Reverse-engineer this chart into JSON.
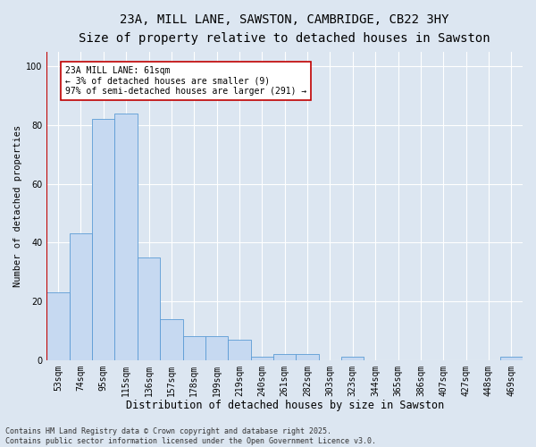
{
  "title": "23A, MILL LANE, SAWSTON, CAMBRIDGE, CB22 3HY",
  "subtitle": "Size of property relative to detached houses in Sawston",
  "xlabel": "Distribution of detached houses by size in Sawston",
  "ylabel": "Number of detached properties",
  "categories": [
    "53sqm",
    "74sqm",
    "95sqm",
    "115sqm",
    "136sqm",
    "157sqm",
    "178sqm",
    "199sqm",
    "219sqm",
    "240sqm",
    "261sqm",
    "282sqm",
    "303sqm",
    "323sqm",
    "344sqm",
    "365sqm",
    "386sqm",
    "407sqm",
    "427sqm",
    "448sqm",
    "469sqm"
  ],
  "values": [
    23,
    43,
    82,
    84,
    35,
    14,
    8,
    8,
    7,
    1,
    2,
    2,
    0,
    1,
    0,
    0,
    0,
    0,
    0,
    0,
    1
  ],
  "bar_color": "#c6d9f1",
  "bar_edge_color": "#5b9bd5",
  "highlight_color": "#c00000",
  "ylim": [
    0,
    105
  ],
  "yticks": [
    0,
    20,
    40,
    60,
    80,
    100
  ],
  "background_color": "#dce6f1",
  "grid_color": "#ffffff",
  "annotation_text": "23A MILL LANE: 61sqm\n← 3% of detached houses are smaller (9)\n97% of semi-detached houses are larger (291) →",
  "annotation_box_color": "#ffffff",
  "annotation_box_edge_color": "#c00000",
  "footer_text": "Contains HM Land Registry data © Crown copyright and database right 2025.\nContains public sector information licensed under the Open Government Licence v3.0.",
  "title_fontsize": 10,
  "subtitle_fontsize": 9,
  "xlabel_fontsize": 8.5,
  "ylabel_fontsize": 7.5,
  "tick_fontsize": 7,
  "annotation_fontsize": 7,
  "footer_fontsize": 6
}
